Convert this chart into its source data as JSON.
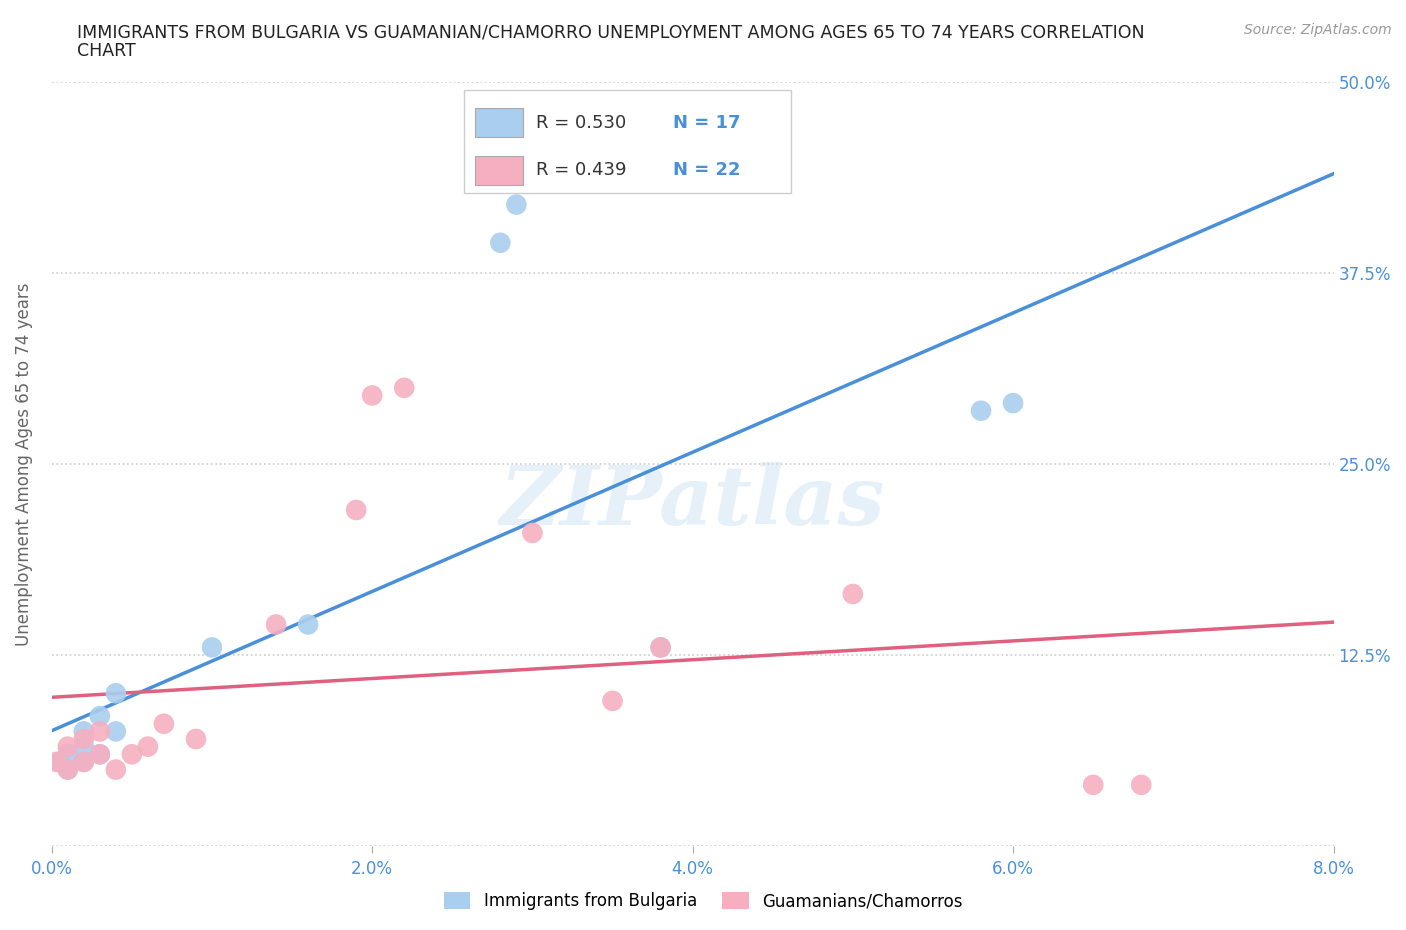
{
  "title_line1": "IMMIGRANTS FROM BULGARIA VS GUAMANIAN/CHAMORRO UNEMPLOYMENT AMONG AGES 65 TO 74 YEARS CORRELATION",
  "title_line2": "CHART",
  "source_text": "Source: ZipAtlas.com",
  "ylabel": "Unemployment Among Ages 65 to 74 years",
  "xlim": [
    0.0,
    0.08
  ],
  "ylim": [
    0.0,
    0.5
  ],
  "xticks": [
    0.0,
    0.02,
    0.04,
    0.06,
    0.08
  ],
  "xticklabels": [
    "0.0%",
    "2.0%",
    "4.0%",
    "6.0%",
    "8.0%"
  ],
  "yticks": [
    0.0,
    0.125,
    0.25,
    0.375,
    0.5
  ],
  "yticklabels_right": [
    "",
    "12.5%",
    "25.0%",
    "37.5%",
    "50.0%"
  ],
  "bulgaria_color": "#aacfee",
  "guam_color": "#f5afc0",
  "bulgaria_R": 0.53,
  "bulgaria_N": 17,
  "guam_R": 0.439,
  "guam_N": 22,
  "bulgaria_line_color": "#4a90d9",
  "guam_line_color": "#e06080",
  "watermark": "ZIPatlas",
  "bulgaria_x": [
    0.0005,
    0.001,
    0.001,
    0.002,
    0.002,
    0.002,
    0.003,
    0.003,
    0.004,
    0.004,
    0.01,
    0.016,
    0.028,
    0.029,
    0.038,
    0.058,
    0.06
  ],
  "bulgaria_y": [
    0.055,
    0.05,
    0.06,
    0.055,
    0.065,
    0.075,
    0.06,
    0.085,
    0.1,
    0.075,
    0.13,
    0.145,
    0.395,
    0.42,
    0.13,
    0.285,
    0.29
  ],
  "guam_x": [
    0.0003,
    0.001,
    0.001,
    0.002,
    0.002,
    0.003,
    0.003,
    0.004,
    0.005,
    0.006,
    0.007,
    0.009,
    0.014,
    0.019,
    0.02,
    0.022,
    0.03,
    0.035,
    0.038,
    0.05,
    0.065,
    0.068
  ],
  "guam_y": [
    0.055,
    0.05,
    0.065,
    0.055,
    0.07,
    0.06,
    0.075,
    0.05,
    0.06,
    0.065,
    0.08,
    0.07,
    0.145,
    0.22,
    0.295,
    0.3,
    0.205,
    0.095,
    0.13,
    0.165,
    0.04,
    0.04
  ],
  "background_color": "#ffffff",
  "grid_color": "#cccccc",
  "title_color": "#222222",
  "axis_label_color": "#666666",
  "tick_label_color": "#4a90d9",
  "legend_label_bulgaria": "Immigrants from Bulgaria",
  "legend_label_guam": "Guamanians/Chamorros"
}
